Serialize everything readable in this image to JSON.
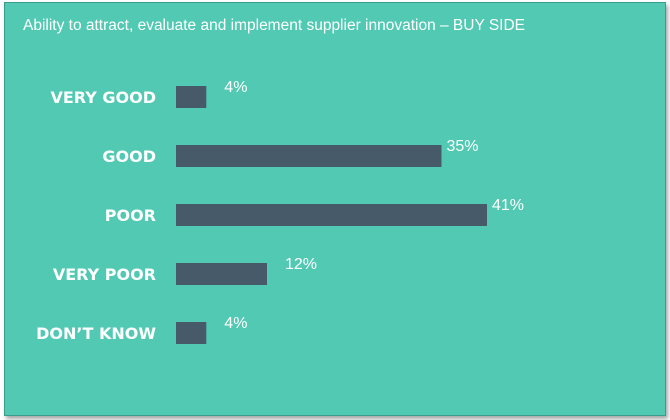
{
  "chart_data": {
    "type": "bar",
    "orientation": "horizontal",
    "title": "Ability to attract, evaluate and implement supplier innovation – BUY SIDE",
    "categories": [
      "VERY GOOD",
      "GOOD",
      "POOR",
      "VERY POOR",
      "DON’T KNOW"
    ],
    "values": [
      4,
      35,
      41,
      12,
      4
    ],
    "value_labels": [
      "4%",
      "35%",
      "41%",
      "12%",
      "4%"
    ],
    "unit": "%",
    "xlim": [
      0,
      41
    ],
    "grid": false,
    "legend": "none",
    "colors": {
      "background": "#52c9b3",
      "bar": "#475a6a",
      "text": "#ffffff"
    }
  }
}
